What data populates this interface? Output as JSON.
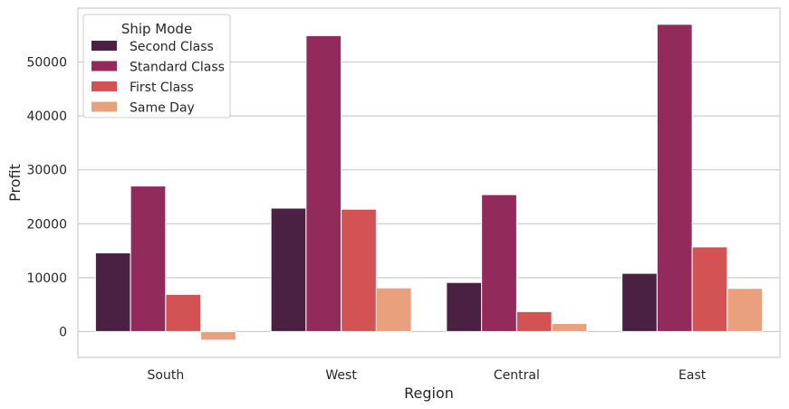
{
  "chart_data": {
    "type": "bar",
    "xlabel": "Region",
    "ylabel": "Profit",
    "categories": [
      "South",
      "West",
      "Central",
      "East"
    ],
    "ylim": [
      -4800,
      60000
    ],
    "yticks": [
      0,
      10000,
      20000,
      30000,
      40000,
      50000
    ],
    "grid": "y",
    "legend": {
      "title": "Ship Mode",
      "placement": "top-left"
    },
    "series": [
      {
        "name": "Second Class",
        "color": "#4a2143",
        "values": [
          14600,
          22900,
          9100,
          10800
        ]
      },
      {
        "name": "Standard Class",
        "color": "#922b5b",
        "values": [
          27000,
          54900,
          25400,
          57000
        ]
      },
      {
        "name": "First Class",
        "color": "#d35354",
        "values": [
          6900,
          22700,
          3700,
          15700
        ]
      },
      {
        "name": "Same Day",
        "color": "#e9a07c",
        "values": [
          -1600,
          8100,
          1500,
          8000
        ]
      }
    ]
  }
}
